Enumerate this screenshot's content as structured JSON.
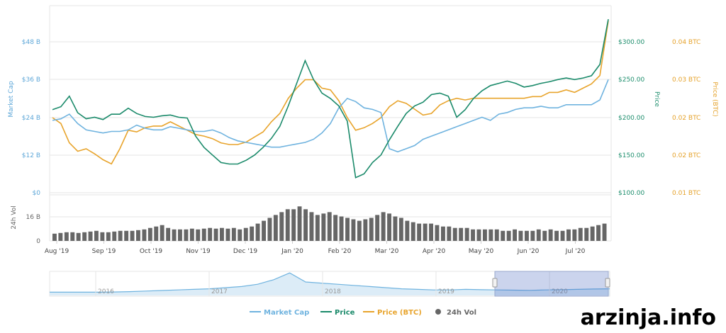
{
  "watermark": "arzinja.info",
  "colors": {
    "market_cap": "#6fb3df",
    "price": "#1a8a6a",
    "price_btc": "#e8a42c",
    "volume": "#666666"
  },
  "chart_data": {
    "type": "line",
    "x_labels": [
      "Aug '19",
      "Sep '19",
      "Oct '19",
      "Nov '19",
      "Dec '19",
      "Jan '20",
      "Feb '20",
      "Mar '20",
      "Apr '20",
      "May '20",
      "Jun '20",
      "Jul '20"
    ],
    "axes": {
      "market_cap": {
        "label": "Market Cap",
        "ticks": [
          "$48 B",
          "$36 B",
          "$24 B",
          "$12 B",
          "$0"
        ],
        "range": [
          0,
          48
        ]
      },
      "price": {
        "label": "Price",
        "ticks": [
          "$300.00",
          "$250.00",
          "$200.00",
          "$150.00",
          "$100.00"
        ],
        "range": [
          100,
          300
        ]
      },
      "price_btc": {
        "label": "Price (BTC)",
        "ticks": [
          "0.04 BTC",
          "0.03 BTC",
          "0.02 BTC",
          "0.02 BTC",
          "0.01 BTC"
        ]
      },
      "volume": {
        "label": "24h Vol",
        "ticks": [
          "16 B",
          "0"
        ],
        "range": [
          0,
          32
        ]
      }
    },
    "series": [
      {
        "name": "Market Cap",
        "unit": "B USD",
        "values": [
          23,
          23.5,
          25,
          22,
          20,
          19.5,
          19,
          19.5,
          19.5,
          20,
          21.5,
          20.5,
          20,
          20,
          21,
          20.5,
          20,
          19.5,
          19.5,
          20,
          19,
          17.5,
          16.5,
          16,
          15.5,
          15,
          14.5,
          14.5,
          15,
          15.5,
          16,
          17,
          19,
          22,
          27,
          30,
          29,
          27,
          26.5,
          25.5,
          14,
          13,
          14,
          15,
          17,
          18,
          19,
          20,
          21,
          22,
          23,
          24,
          23,
          25,
          25.5,
          26.5,
          27,
          27,
          27.5,
          27,
          27,
          28,
          28,
          28,
          28,
          29.5,
          36
        ]
      },
      {
        "name": "Price",
        "unit": "USD",
        "values": [
          210,
          214,
          228,
          206,
          198,
          200,
          197,
          204,
          204,
          212,
          205,
          201,
          200,
          202,
          203,
          200,
          199,
          175,
          160,
          150,
          140,
          138,
          138,
          143,
          150,
          160,
          172,
          188,
          215,
          245,
          275,
          250,
          232,
          225,
          215,
          195,
          120,
          125,
          140,
          150,
          170,
          188,
          205,
          215,
          220,
          230,
          232,
          228,
          200,
          210,
          225,
          235,
          242,
          245,
          248,
          245,
          240,
          242,
          245,
          247,
          250,
          252,
          250,
          252,
          255,
          270,
          330
        ]
      },
      {
        "name": "Price (BTC)",
        "unit": "BTC",
        "values": [
          0.0215,
          0.0208,
          0.0185,
          0.0175,
          0.0178,
          0.0172,
          0.0165,
          0.016,
          0.0178,
          0.02,
          0.0198,
          0.0203,
          0.0205,
          0.0205,
          0.021,
          0.0205,
          0.02,
          0.0195,
          0.0193,
          0.019,
          0.0185,
          0.0183,
          0.0183,
          0.0186,
          0.0192,
          0.0198,
          0.021,
          0.022,
          0.0238,
          0.025,
          0.026,
          0.026,
          0.025,
          0.0248,
          0.0235,
          0.0215,
          0.02,
          0.0203,
          0.0208,
          0.0215,
          0.0228,
          0.0235,
          0.0232,
          0.0225,
          0.0218,
          0.022,
          0.023,
          0.0235,
          0.0238,
          0.0236,
          0.0238,
          0.0238,
          0.0238,
          0.0238,
          0.0238,
          0.0238,
          0.0238,
          0.024,
          0.024,
          0.0245,
          0.0245,
          0.0248,
          0.0245,
          0.025,
          0.0255,
          0.0265,
          0.033
        ]
      },
      {
        "name": "24h Vol",
        "unit": "B USD",
        "values": [
          5,
          5.5,
          6,
          6,
          5.5,
          6,
          6.5,
          7,
          6,
          6,
          6.5,
          7,
          7,
          7,
          7.5,
          8,
          9,
          10,
          11,
          9,
          8,
          8,
          8,
          8.5,
          8,
          8.5,
          9,
          8.5,
          9,
          8.5,
          9,
          8,
          9,
          10,
          12,
          14,
          16,
          18,
          20,
          22,
          22,
          24,
          22,
          20,
          18,
          19,
          20,
          18,
          17,
          16,
          15,
          14,
          15,
          16,
          18,
          20,
          19,
          17,
          16,
          14,
          13,
          12,
          12,
          12,
          11,
          10,
          10,
          9,
          9,
          9,
          8,
          8,
          8,
          8,
          8,
          7,
          7,
          8,
          7,
          7,
          7,
          8,
          7,
          8,
          7,
          7,
          8,
          8,
          9,
          9,
          10,
          11,
          12
        ]
      }
    ],
    "navigator": {
      "years": [
        "2016",
        "2017",
        "2018",
        "2019",
        "2020"
      ],
      "series": [
        1,
        1,
        1,
        1,
        1.2,
        1.5,
        2,
        2.5,
        3,
        3.5,
        4,
        5,
        6,
        8,
        12,
        18,
        10,
        9,
        8,
        7,
        6,
        5,
        4,
        3.5,
        3,
        3,
        3.5,
        3.2,
        3,
        2.8,
        2.6,
        3,
        3.2,
        3.5,
        3.8,
        4
      ]
    },
    "legend": [
      {
        "name": "Market Cap",
        "marker": "line"
      },
      {
        "name": "Price",
        "marker": "line"
      },
      {
        "name": "Price (BTC)",
        "marker": "line"
      },
      {
        "name": "24h Vol",
        "marker": "dot"
      }
    ],
    "grid": true
  }
}
